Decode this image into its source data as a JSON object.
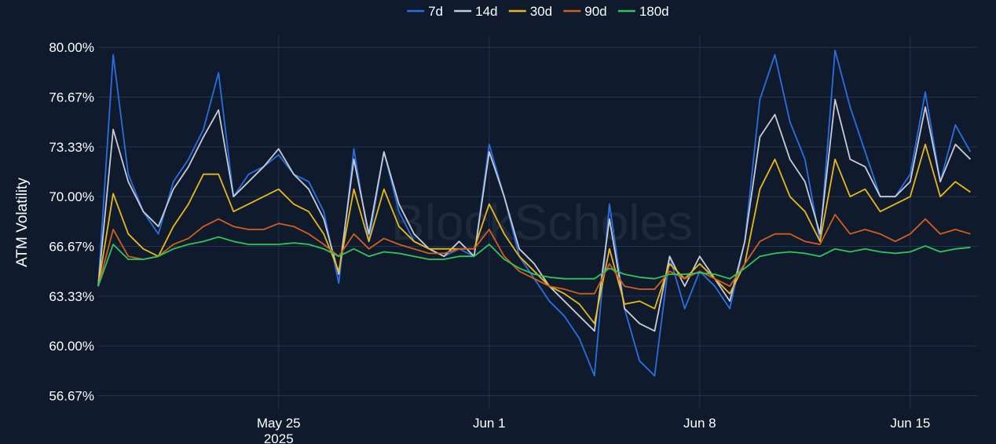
{
  "chart_data": {
    "type": "line",
    "title": "",
    "xlabel": "",
    "ylabel": "ATM Volatility",
    "watermark": "BlockScholes",
    "y_unit": "%",
    "ylim": [
      55.8,
      80.8
    ],
    "yticks": [
      {
        "value": 56.67,
        "label": "56.67%"
      },
      {
        "value": 60.0,
        "label": "60.00%"
      },
      {
        "value": 63.33,
        "label": "63.33%"
      },
      {
        "value": 66.67,
        "label": "66.67%"
      },
      {
        "value": 70.0,
        "label": "70.00%"
      },
      {
        "value": 73.33,
        "label": "73.33%"
      },
      {
        "value": 76.67,
        "label": "76.67%"
      },
      {
        "value": 80.0,
        "label": "80.00%"
      }
    ],
    "xlim": [
      "2025-05-19",
      "2025-06-17T06:00"
    ],
    "xticks": [
      {
        "value": "2025-05-25",
        "label": "May 25",
        "sublabel": "2025"
      },
      {
        "value": "2025-06-01",
        "label": "Jun 1",
        "sublabel": ""
      },
      {
        "value": "2025-06-08",
        "label": "Jun 8",
        "sublabel": ""
      },
      {
        "value": "2025-06-15",
        "label": "Jun 15",
        "sublabel": ""
      }
    ],
    "grid": true,
    "legend_position": "top-center",
    "x": [
      "2025-05-19T00:00",
      "2025-05-19T12:00",
      "2025-05-20T00:00",
      "2025-05-20T12:00",
      "2025-05-21T00:00",
      "2025-05-21T12:00",
      "2025-05-22T00:00",
      "2025-05-22T12:00",
      "2025-05-23T00:00",
      "2025-05-23T12:00",
      "2025-05-24T00:00",
      "2025-05-24T12:00",
      "2025-05-25T00:00",
      "2025-05-25T12:00",
      "2025-05-26T00:00",
      "2025-05-26T12:00",
      "2025-05-27T00:00",
      "2025-05-27T12:00",
      "2025-05-28T00:00",
      "2025-05-28T12:00",
      "2025-05-29T00:00",
      "2025-05-29T12:00",
      "2025-05-30T00:00",
      "2025-05-30T12:00",
      "2025-05-31T00:00",
      "2025-05-31T12:00",
      "2025-06-01T00:00",
      "2025-06-01T12:00",
      "2025-06-02T00:00",
      "2025-06-02T12:00",
      "2025-06-03T00:00",
      "2025-06-03T12:00",
      "2025-06-04T00:00",
      "2025-06-04T12:00",
      "2025-06-05T00:00",
      "2025-06-05T12:00",
      "2025-06-06T00:00",
      "2025-06-06T12:00",
      "2025-06-07T00:00",
      "2025-06-07T12:00",
      "2025-06-08T00:00",
      "2025-06-08T12:00",
      "2025-06-09T00:00",
      "2025-06-09T12:00",
      "2025-06-10T00:00",
      "2025-06-10T12:00",
      "2025-06-11T00:00",
      "2025-06-11T12:00",
      "2025-06-12T00:00",
      "2025-06-12T12:00",
      "2025-06-13T00:00",
      "2025-06-13T12:00",
      "2025-06-14T00:00",
      "2025-06-14T12:00",
      "2025-06-15T00:00",
      "2025-06-15T12:00",
      "2025-06-16T00:00",
      "2025-06-16T12:00",
      "2025-06-17T00:00"
    ],
    "series": [
      {
        "name": "7d",
        "color": "#2a6fe0",
        "values": [
          64.0,
          79.5,
          71.5,
          69.0,
          67.5,
          71.0,
          72.5,
          74.5,
          78.3,
          70.0,
          71.5,
          72.0,
          72.8,
          71.5,
          71.0,
          69.0,
          64.2,
          73.2,
          67.0,
          73.0,
          69.0,
          67.0,
          66.5,
          66.0,
          66.5,
          66.0,
          73.5,
          70.0,
          66.0,
          64.5,
          63.0,
          62.0,
          60.5,
          58.0,
          69.5,
          62.5,
          59.0,
          58.0,
          66.0,
          62.5,
          65.0,
          64.0,
          62.5,
          67.0,
          76.5,
          79.5,
          75.0,
          72.5,
          67.0,
          79.8,
          76.0,
          73.0,
          70.0,
          70.0,
          71.5,
          77.0,
          71.0,
          74.8,
          73.0
        ]
      },
      {
        "name": "14d",
        "color": "#c8cbd3",
        "values": [
          64.0,
          74.5,
          71.0,
          69.0,
          68.0,
          70.5,
          72.0,
          74.0,
          75.8,
          70.0,
          71.0,
          72.0,
          73.2,
          71.5,
          70.5,
          68.5,
          64.8,
          72.5,
          67.5,
          73.0,
          69.5,
          67.5,
          66.5,
          66.0,
          67.0,
          66.0,
          73.0,
          70.0,
          66.5,
          65.5,
          64.0,
          63.0,
          62.0,
          61.0,
          68.5,
          62.5,
          61.5,
          61.0,
          66.0,
          64.0,
          66.0,
          64.5,
          63.0,
          67.0,
          74.0,
          75.5,
          72.5,
          71.0,
          67.5,
          76.5,
          72.5,
          72.0,
          70.0,
          70.0,
          71.0,
          76.0,
          71.0,
          73.5,
          72.5
        ]
      },
      {
        "name": "30d",
        "color": "#e8b818",
        "values": [
          64.0,
          70.2,
          67.5,
          66.5,
          66.0,
          68.0,
          69.5,
          71.5,
          71.5,
          69.0,
          69.5,
          70.0,
          70.5,
          69.5,
          69.0,
          67.5,
          65.0,
          70.5,
          67.0,
          70.5,
          68.0,
          67.0,
          66.5,
          66.5,
          66.5,
          66.5,
          69.5,
          67.5,
          66.0,
          65.0,
          64.0,
          63.5,
          62.8,
          61.5,
          66.5,
          62.8,
          63.0,
          62.5,
          65.5,
          64.5,
          65.5,
          64.5,
          63.5,
          65.5,
          70.5,
          72.5,
          70.0,
          69.0,
          67.0,
          72.5,
          70.0,
          70.5,
          69.0,
          69.5,
          70.0,
          73.5,
          70.0,
          71.0,
          70.3
        ]
      },
      {
        "name": "90d",
        "color": "#cf5f1c",
        "values": [
          64.0,
          67.8,
          66.0,
          65.8,
          66.0,
          66.8,
          67.2,
          68.0,
          68.5,
          68.0,
          67.8,
          67.8,
          68.2,
          68.0,
          67.5,
          66.8,
          66.0,
          67.5,
          66.5,
          67.2,
          66.8,
          66.5,
          66.2,
          66.2,
          66.5,
          66.5,
          67.8,
          66.0,
          65.0,
          64.5,
          64.0,
          63.8,
          63.5,
          63.5,
          65.5,
          64.0,
          63.8,
          63.8,
          65.0,
          64.5,
          65.0,
          64.5,
          64.0,
          65.5,
          67.0,
          67.5,
          67.5,
          67.0,
          66.8,
          68.8,
          67.5,
          67.8,
          67.5,
          67.0,
          67.5,
          68.5,
          67.5,
          67.8,
          67.5
        ]
      },
      {
        "name": "180d",
        "color": "#2fc55b",
        "values": [
          64.0,
          66.8,
          65.8,
          65.8,
          66.0,
          66.5,
          66.8,
          67.0,
          67.3,
          67.0,
          66.8,
          66.8,
          66.8,
          66.9,
          66.8,
          66.5,
          66.0,
          66.5,
          66.0,
          66.3,
          66.2,
          66.0,
          65.8,
          65.8,
          66.0,
          66.0,
          66.8,
          65.8,
          65.2,
          64.8,
          64.6,
          64.5,
          64.5,
          64.5,
          65.2,
          64.8,
          64.6,
          64.5,
          64.8,
          64.8,
          64.9,
          64.8,
          64.5,
          65.2,
          66.0,
          66.2,
          66.3,
          66.2,
          66.0,
          66.5,
          66.3,
          66.5,
          66.3,
          66.2,
          66.3,
          66.7,
          66.3,
          66.5,
          66.6
        ]
      }
    ]
  }
}
